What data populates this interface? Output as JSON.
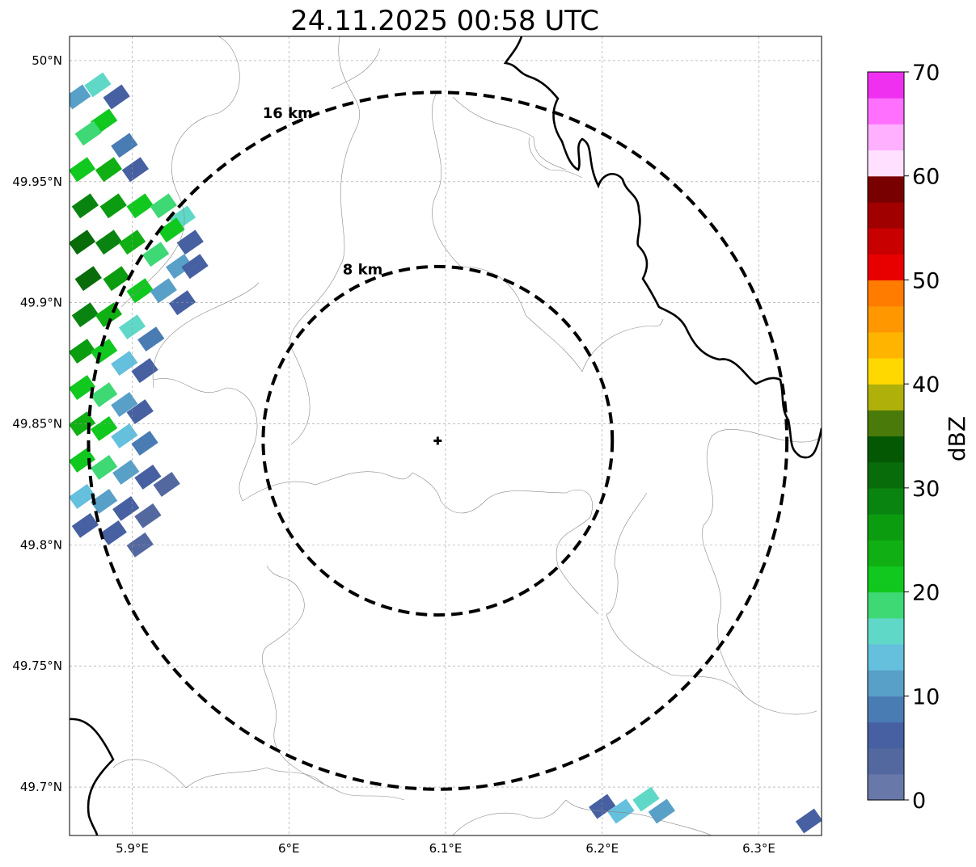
{
  "title": "24.11.2025 00:58 UTC",
  "map": {
    "lon_range": [
      5.86,
      6.34
    ],
    "lat_range": [
      49.68,
      50.01
    ],
    "x_ticks": [
      {
        "value": 5.9,
        "label": "5.9°E"
      },
      {
        "value": 6.0,
        "label": "6°E"
      },
      {
        "value": 6.1,
        "label": "6.1°E"
      },
      {
        "value": 6.2,
        "label": "6.2°E"
      },
      {
        "value": 6.3,
        "label": "6.3°E"
      }
    ],
    "y_ticks": [
      {
        "value": 50.0,
        "label": "50°N"
      },
      {
        "value": 49.95,
        "label": "49.95°N"
      },
      {
        "value": 49.9,
        "label": "49.9°N"
      },
      {
        "value": 49.85,
        "label": "49.85°N"
      },
      {
        "value": 49.8,
        "label": "49.8°N"
      },
      {
        "value": 49.75,
        "label": "49.75°N"
      },
      {
        "value": 49.7,
        "label": "49.7°N"
      }
    ],
    "grid": true,
    "radar_site": {
      "lon": 6.095,
      "lat": 49.843
    },
    "range_rings": [
      {
        "radius_km": 8,
        "label": "8 km"
      },
      {
        "radius_km": 16,
        "label": "16 km"
      }
    ]
  },
  "colorbar": {
    "label": "dBZ",
    "vmin": 0,
    "vmax": 70,
    "step": 2.5,
    "ticks": [
      {
        "value": 0,
        "label": "0"
      },
      {
        "value": 10,
        "label": "10"
      },
      {
        "value": 20,
        "label": "20"
      },
      {
        "value": 30,
        "label": "30"
      },
      {
        "value": 40,
        "label": "40"
      },
      {
        "value": 50,
        "label": "50"
      },
      {
        "value": 60,
        "label": "60"
      },
      {
        "value": 70,
        "label": "70"
      }
    ],
    "colors": [
      "#6878a8",
      "#5468a0",
      "#4660a2",
      "#4a7cb4",
      "#58a0c8",
      "#64c0dc",
      "#60d8c8",
      "#3ed874",
      "#10c81e",
      "#10b014",
      "#0c9c10",
      "#0a8410",
      "#086c0a",
      "#045804",
      "#4a7a0a",
      "#b0b00a",
      "#ffd800",
      "#ffb400",
      "#ff9800",
      "#ff7c00",
      "#e80000",
      "#c80000",
      "#a00000",
      "#780000",
      "#ffe0ff",
      "#ffb0ff",
      "#ff70ff",
      "#f030f0"
    ]
  },
  "echoes": [
    {
      "lon": 5.865,
      "lat": 49.985,
      "dbz": 10
    },
    {
      "lon": 5.878,
      "lat": 49.99,
      "dbz": 15
    },
    {
      "lon": 5.89,
      "lat": 49.985,
      "dbz": 5
    },
    {
      "lon": 5.882,
      "lat": 49.975,
      "dbz": 20
    },
    {
      "lon": 5.872,
      "lat": 49.97,
      "dbz": 18
    },
    {
      "lon": 5.895,
      "lat": 49.965,
      "dbz": 8
    },
    {
      "lon": 5.902,
      "lat": 49.955,
      "dbz": 5
    },
    {
      "lon": 5.868,
      "lat": 49.955,
      "dbz": 22
    },
    {
      "lon": 5.885,
      "lat": 49.955,
      "dbz": 24
    },
    {
      "lon": 5.87,
      "lat": 49.94,
      "dbz": 28
    },
    {
      "lon": 5.888,
      "lat": 49.94,
      "dbz": 25
    },
    {
      "lon": 5.905,
      "lat": 49.94,
      "dbz": 22
    },
    {
      "lon": 5.92,
      "lat": 49.94,
      "dbz": 18
    },
    {
      "lon": 5.932,
      "lat": 49.935,
      "dbz": 16
    },
    {
      "lon": 5.925,
      "lat": 49.93,
      "dbz": 20
    },
    {
      "lon": 5.937,
      "lat": 49.925,
      "dbz": 6
    },
    {
      "lon": 5.868,
      "lat": 49.925,
      "dbz": 30
    },
    {
      "lon": 5.885,
      "lat": 49.925,
      "dbz": 28
    },
    {
      "lon": 5.9,
      "lat": 49.925,
      "dbz": 24
    },
    {
      "lon": 5.915,
      "lat": 49.92,
      "dbz": 18
    },
    {
      "lon": 5.93,
      "lat": 49.915,
      "dbz": 10
    },
    {
      "lon": 5.94,
      "lat": 49.915,
      "dbz": 6
    },
    {
      "lon": 5.872,
      "lat": 49.91,
      "dbz": 32
    },
    {
      "lon": 5.89,
      "lat": 49.91,
      "dbz": 26
    },
    {
      "lon": 5.905,
      "lat": 49.905,
      "dbz": 20
    },
    {
      "lon": 5.92,
      "lat": 49.905,
      "dbz": 12
    },
    {
      "lon": 5.932,
      "lat": 49.9,
      "dbz": 6
    },
    {
      "lon": 5.87,
      "lat": 49.895,
      "dbz": 28
    },
    {
      "lon": 5.885,
      "lat": 49.895,
      "dbz": 24
    },
    {
      "lon": 5.9,
      "lat": 49.89,
      "dbz": 16
    },
    {
      "lon": 5.912,
      "lat": 49.885,
      "dbz": 8
    },
    {
      "lon": 5.868,
      "lat": 49.88,
      "dbz": 26
    },
    {
      "lon": 5.882,
      "lat": 49.88,
      "dbz": 22
    },
    {
      "lon": 5.895,
      "lat": 49.875,
      "dbz": 14
    },
    {
      "lon": 5.908,
      "lat": 49.872,
      "dbz": 6
    },
    {
      "lon": 5.868,
      "lat": 49.865,
      "dbz": 22
    },
    {
      "lon": 5.882,
      "lat": 49.862,
      "dbz": 18
    },
    {
      "lon": 5.895,
      "lat": 49.858,
      "dbz": 10
    },
    {
      "lon": 5.905,
      "lat": 49.855,
      "dbz": 5
    },
    {
      "lon": 5.868,
      "lat": 49.85,
      "dbz": 24
    },
    {
      "lon": 5.882,
      "lat": 49.848,
      "dbz": 20
    },
    {
      "lon": 5.895,
      "lat": 49.845,
      "dbz": 14
    },
    {
      "lon": 5.908,
      "lat": 49.842,
      "dbz": 8
    },
    {
      "lon": 5.868,
      "lat": 49.835,
      "dbz": 22
    },
    {
      "lon": 5.882,
      "lat": 49.832,
      "dbz": 18
    },
    {
      "lon": 5.896,
      "lat": 49.83,
      "dbz": 12
    },
    {
      "lon": 5.91,
      "lat": 49.828,
      "dbz": 6
    },
    {
      "lon": 5.922,
      "lat": 49.825,
      "dbz": 4
    },
    {
      "lon": 5.868,
      "lat": 49.82,
      "dbz": 14
    },
    {
      "lon": 5.882,
      "lat": 49.818,
      "dbz": 10
    },
    {
      "lon": 5.896,
      "lat": 49.815,
      "dbz": 6
    },
    {
      "lon": 5.91,
      "lat": 49.812,
      "dbz": 4
    },
    {
      "lon": 5.87,
      "lat": 49.808,
      "dbz": 6
    },
    {
      "lon": 5.888,
      "lat": 49.805,
      "dbz": 5
    },
    {
      "lon": 5.905,
      "lat": 49.8,
      "dbz": 4
    },
    {
      "lon": 6.2,
      "lat": 49.692,
      "dbz": 6
    },
    {
      "lon": 6.212,
      "lat": 49.69,
      "dbz": 14
    },
    {
      "lon": 6.228,
      "lat": 49.695,
      "dbz": 16
    },
    {
      "lon": 6.238,
      "lat": 49.69,
      "dbz": 10
    },
    {
      "lon": 6.332,
      "lat": 49.686,
      "dbz": 6
    }
  ]
}
